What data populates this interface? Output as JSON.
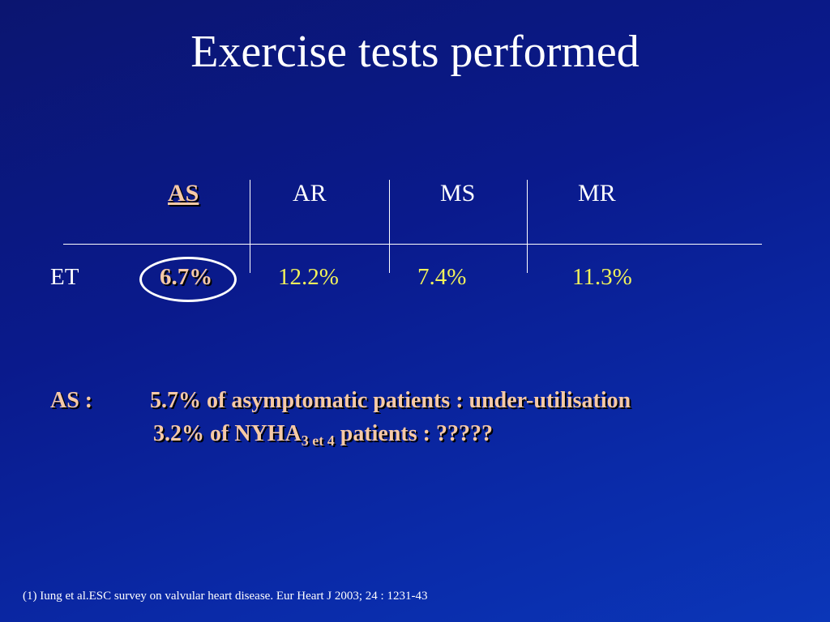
{
  "slide": {
    "title": "Exercise tests performed"
  },
  "table": {
    "columns": [
      "AS",
      "AR",
      "MS",
      "MR"
    ],
    "row_label": "ET",
    "values": [
      "6.7%",
      "12.2%",
      "7.4%",
      "11.3%"
    ]
  },
  "note": {
    "label": "AS :",
    "line1_pct": "5.7%",
    "line1_text": "of asymptomatic patients : under-utilisation",
    "line2_pct": "3.2%",
    "line2_pre": "of NYHA",
    "line2_sub": "3 et 4",
    "line2_post": "patients : ?????"
  },
  "reference": "(1) Iung et al.ESC survey on valvular heart disease. Eur Heart J 2003; 24 : 1231-43",
  "colors": {
    "background": "#0a1a8c",
    "highlight": "#f6c9a6",
    "value_yellow": "#f2f25a"
  }
}
